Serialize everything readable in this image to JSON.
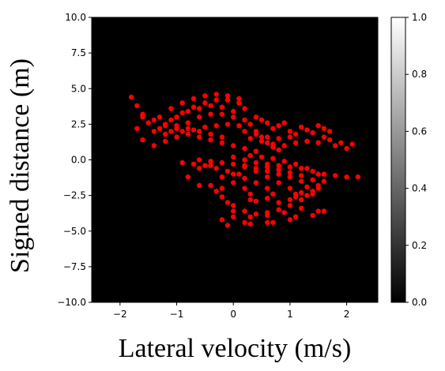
{
  "chart_data": {
    "type": "scatter",
    "title": "",
    "xlabel": "Lateral velocity (m/s)",
    "ylabel": "Signed distance (m)",
    "xlim": [
      -2.5,
      2.55
    ],
    "ylim": [
      -10.0,
      10.0
    ],
    "xticks": [
      {
        "value": -2,
        "label": "−2"
      },
      {
        "value": -1,
        "label": "−1"
      },
      {
        "value": 0,
        "label": "0"
      },
      {
        "value": 1,
        "label": "1"
      },
      {
        "value": 2,
        "label": "2"
      }
    ],
    "yticks": [
      {
        "value": 10.0,
        "label": "10.0"
      },
      {
        "value": 7.5,
        "label": "7.5"
      },
      {
        "value": 5.0,
        "label": "5.0"
      },
      {
        "value": 2.5,
        "label": "2.5"
      },
      {
        "value": 0.0,
        "label": "0.0"
      },
      {
        "value": -2.5,
        "label": "−2.5"
      },
      {
        "value": -5.0,
        "label": "−5.0"
      },
      {
        "value": -7.5,
        "label": "−7.5"
      },
      {
        "value": -10.0,
        "label": "−10.0"
      }
    ],
    "background_color": "#000000",
    "point_color": "#ff0000",
    "grid": false,
    "colorbar": {
      "colormap": "gray",
      "range": [
        0.0,
        1.0
      ],
      "ticks": [
        {
          "value": 1.0,
          "label": "1.0"
        },
        {
          "value": 0.8,
          "label": "0.8"
        },
        {
          "value": 0.6,
          "label": "0.6"
        },
        {
          "value": 0.4,
          "label": "0.4"
        },
        {
          "value": 0.2,
          "label": "0.2"
        },
        {
          "value": 0.0,
          "label": "0.0"
        }
      ]
    },
    "series": [
      {
        "points": [
          [
            -1.8,
            4.4
          ],
          [
            -1.7,
            3.8
          ],
          [
            -1.6,
            3.0
          ],
          [
            -1.7,
            2.2
          ],
          [
            -1.6,
            1.4
          ],
          [
            -1.4,
            1.0
          ],
          [
            -1.2,
            1.3
          ],
          [
            -1.5,
            2.6
          ],
          [
            -1.3,
            3.0
          ],
          [
            -1.1,
            3.6
          ],
          [
            -0.9,
            4.0
          ],
          [
            -0.7,
            4.3
          ],
          [
            -0.5,
            4.5
          ],
          [
            -0.3,
            4.6
          ],
          [
            -0.1,
            4.5
          ],
          [
            0.1,
            4.3
          ],
          [
            -1.3,
            2.2
          ],
          [
            -1.1,
            2.8
          ],
          [
            -0.9,
            3.3
          ],
          [
            -0.7,
            3.7
          ],
          [
            -0.5,
            4.0
          ],
          [
            -0.3,
            4.2
          ],
          [
            -0.1,
            4.2
          ],
          [
            0.1,
            4.0
          ],
          [
            0.2,
            3.6
          ],
          [
            -1.4,
            2.0
          ],
          [
            -1.2,
            2.5
          ],
          [
            -1.0,
            3.0
          ],
          [
            -0.8,
            3.4
          ],
          [
            -0.6,
            3.6
          ],
          [
            -0.4,
            3.8
          ],
          [
            -0.2,
            3.7
          ],
          [
            0.0,
            3.4
          ],
          [
            -1.2,
            1.8
          ],
          [
            -1.0,
            2.2
          ],
          [
            -0.8,
            2.6
          ],
          [
            -0.6,
            3.0
          ],
          [
            -0.4,
            3.2
          ],
          [
            -0.2,
            3.2
          ],
          [
            0.0,
            3.0
          ],
          [
            0.2,
            2.8
          ],
          [
            -1.0,
            1.6
          ],
          [
            -0.8,
            1.8
          ],
          [
            -0.6,
            1.6
          ],
          [
            -0.4,
            1.4
          ],
          [
            -0.2,
            1.2
          ],
          [
            0.0,
            1.0
          ],
          [
            0.2,
            0.8
          ],
          [
            0.4,
            0.6
          ],
          [
            -1.1,
            2.0
          ],
          [
            -0.9,
            2.0
          ],
          [
            -0.7,
            2.1
          ],
          [
            -0.5,
            2.3
          ],
          [
            -0.3,
            2.4
          ],
          [
            -0.1,
            2.5
          ],
          [
            0.1,
            2.4
          ],
          [
            -1.6,
            3.2
          ],
          [
            -1.4,
            2.8
          ],
          [
            -1.2,
            2.4
          ],
          [
            -1.0,
            2.4
          ],
          [
            -0.8,
            2.2
          ],
          [
            -0.6,
            2.0
          ],
          [
            -0.4,
            1.8
          ],
          [
            -0.2,
            1.6
          ],
          [
            0.3,
            2.5
          ],
          [
            0.4,
            2.0
          ],
          [
            0.5,
            1.6
          ],
          [
            0.6,
            1.2
          ],
          [
            0.7,
            0.9
          ],
          [
            0.8,
            0.7
          ],
          [
            0.3,
            1.5
          ],
          [
            0.5,
            1.3
          ],
          [
            0.7,
            1.1
          ],
          [
            0.9,
            1.0
          ],
          [
            1.1,
            1.2
          ],
          [
            1.3,
            1.3
          ],
          [
            1.5,
            1.2
          ],
          [
            0.2,
            2.0
          ],
          [
            0.4,
            1.8
          ],
          [
            0.6,
            1.6
          ],
          [
            0.8,
            1.5
          ],
          [
            1.0,
            1.6
          ],
          [
            0.7,
            2.2
          ],
          [
            0.8,
            2.4
          ],
          [
            0.9,
            2.6
          ],
          [
            1.2,
            2.3
          ],
          [
            1.3,
            2.1
          ],
          [
            1.4,
            1.9
          ],
          [
            1.6,
            1.6
          ],
          [
            1.7,
            1.4
          ],
          [
            0.4,
            3.0
          ],
          [
            0.5,
            2.8
          ],
          [
            0.6,
            2.6
          ],
          [
            1.0,
            2.0
          ],
          [
            1.1,
            1.8
          ],
          [
            1.5,
            2.4
          ],
          [
            1.6,
            2.2
          ],
          [
            1.7,
            2.0
          ],
          [
            1.8,
            1.0
          ],
          [
            1.9,
            1.2
          ],
          [
            2.0,
            0.8
          ],
          [
            2.1,
            1.1
          ],
          [
            -0.6,
            0.0
          ],
          [
            -0.4,
            -0.1
          ],
          [
            -0.2,
            -0.2
          ],
          [
            0.0,
            -0.3
          ],
          [
            0.2,
            -0.4
          ],
          [
            0.4,
            -0.6
          ],
          [
            0.6,
            -0.8
          ],
          [
            -0.9,
            -0.2
          ],
          [
            -0.7,
            -0.3
          ],
          [
            -0.5,
            -0.4
          ],
          [
            -0.3,
            -0.6
          ],
          [
            -0.1,
            -0.8
          ],
          [
            0.1,
            -1.0
          ],
          [
            0.0,
            0.2
          ],
          [
            0.2,
            0.0
          ],
          [
            0.4,
            -0.2
          ],
          [
            0.6,
            -0.3
          ],
          [
            0.8,
            -0.4
          ],
          [
            1.0,
            -0.5
          ],
          [
            1.2,
            -0.6
          ],
          [
            1.4,
            -0.8
          ],
          [
            1.6,
            -1.0
          ],
          [
            1.8,
            -1.1
          ],
          [
            2.0,
            -1.2
          ],
          [
            2.2,
            -1.2
          ],
          [
            0.3,
            0.3
          ],
          [
            0.5,
            0.2
          ],
          [
            0.7,
            0.1
          ],
          [
            0.9,
            -0.1
          ],
          [
            1.1,
            -0.3
          ],
          [
            1.3,
            -0.6
          ],
          [
            1.5,
            -1.0
          ],
          [
            1.6,
            -1.5
          ],
          [
            1.5,
            -2.0
          ],
          [
            1.4,
            -2.4
          ],
          [
            1.2,
            -2.8
          ],
          [
            1.0,
            -3.2
          ],
          [
            0.8,
            -3.5
          ],
          [
            0.6,
            -3.7
          ],
          [
            0.4,
            -3.8
          ],
          [
            0.2,
            -3.6
          ],
          [
            0.0,
            -3.2
          ],
          [
            0.2,
            -0.5
          ],
          [
            0.4,
            -0.8
          ],
          [
            0.6,
            -1.2
          ],
          [
            0.8,
            -1.6
          ],
          [
            1.0,
            -2.0
          ],
          [
            1.1,
            -2.4
          ],
          [
            1.0,
            -2.8
          ],
          [
            0.8,
            -3.0
          ],
          [
            0.0,
            -1.0
          ],
          [
            0.2,
            -1.3
          ],
          [
            0.4,
            -1.6
          ],
          [
            0.6,
            -2.0
          ],
          [
            0.7,
            -2.4
          ],
          [
            0.6,
            -2.7
          ],
          [
            0.4,
            -2.9
          ],
          [
            -0.2,
            -1.2
          ],
          [
            0.0,
            -1.6
          ],
          [
            0.2,
            -2.0
          ],
          [
            0.3,
            -2.4
          ],
          [
            0.3,
            -2.8
          ],
          [
            0.6,
            -0.5
          ],
          [
            0.8,
            -0.7
          ],
          [
            1.0,
            -0.9
          ],
          [
            1.2,
            -1.1
          ],
          [
            1.4,
            -1.4
          ],
          [
            1.5,
            -1.8
          ],
          [
            1.4,
            -2.2
          ],
          [
            1.3,
            -2.5
          ],
          [
            0.8,
            -1.0
          ],
          [
            1.0,
            -1.2
          ],
          [
            1.2,
            -1.5
          ],
          [
            1.3,
            -1.9
          ],
          [
            1.2,
            -2.3
          ],
          [
            1.1,
            -2.6
          ],
          [
            -0.4,
            -1.8
          ],
          [
            -0.3,
            -2.2
          ],
          [
            -0.2,
            -2.6
          ],
          [
            -0.1,
            -3.0
          ],
          [
            0.0,
            -3.6
          ],
          [
            -0.2,
            -4.2
          ],
          [
            0.2,
            -4.4
          ],
          [
            0.6,
            -4.4
          ],
          [
            1.0,
            -4.2
          ],
          [
            1.4,
            -3.9
          ],
          [
            1.6,
            -3.6
          ],
          [
            -0.1,
            -4.6
          ],
          [
            0.3,
            -4.5
          ],
          [
            0.7,
            -4.4
          ],
          [
            1.1,
            -4.0
          ],
          [
            1.5,
            -3.6
          ],
          [
            -0.4,
            -0.4
          ],
          [
            -0.6,
            -0.6
          ],
          [
            -0.8,
            -1.2
          ],
          [
            -0.6,
            -1.8
          ],
          [
            -0.2,
            -2.0
          ],
          [
            0.0,
            -4.0
          ],
          [
            0.3,
            -4.0
          ],
          [
            0.6,
            -3.9
          ],
          [
            0.9,
            -3.7
          ],
          [
            1.2,
            -3.4
          ]
        ]
      }
    ]
  }
}
